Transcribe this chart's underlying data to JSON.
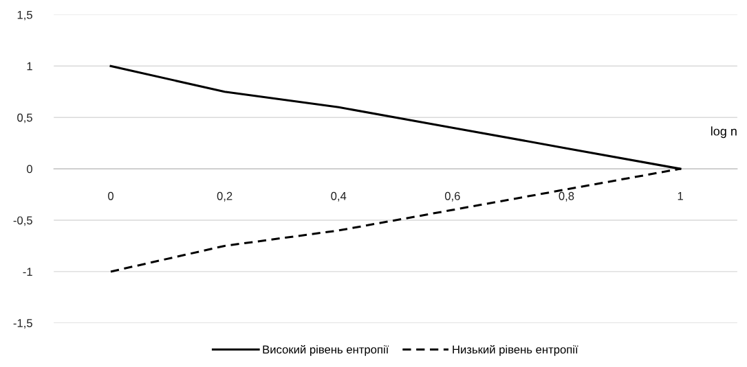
{
  "chart_data": {
    "type": "line",
    "xlabel": "log n",
    "categories": [
      "0",
      "0,2",
      "0,4",
      "0,6",
      "0,8",
      "1"
    ],
    "series": [
      {
        "name": "Високий рівень ентропії",
        "color": "#000000",
        "line_style": "solid",
        "values": [
          1,
          0.75,
          0.6,
          0.4,
          0.2,
          0
        ]
      },
      {
        "name": "Низький рівень ентропії",
        "color": "#000000",
        "line_style": "dashed",
        "values": [
          -1,
          -0.75,
          -0.6,
          -0.4,
          -0.2,
          0
        ]
      }
    ],
    "ylim": [
      -1.5,
      1.5
    ],
    "yticks": [
      {
        "value": 1.5,
        "label": "1,5"
      },
      1,
      {
        "value": 0.5,
        "label": "0,5"
      },
      0,
      {
        "value": -0.5,
        "label": "-0,5"
      },
      -1,
      {
        "value": -1.5,
        "label": "-1,5"
      }
    ],
    "grid": "y",
    "legend": "bottom",
    "marker": "none"
  }
}
